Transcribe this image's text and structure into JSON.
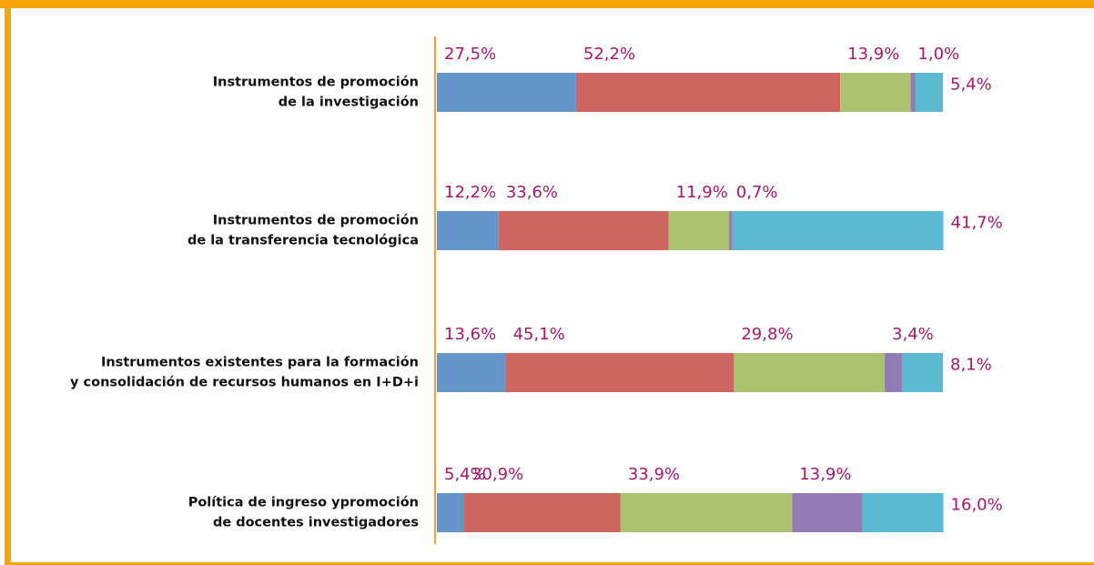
{
  "chart_data": {
    "type": "stacked-barh",
    "categories": [
      [
        "Instrumentos de promoción",
        "de la investigación"
      ],
      [
        "Instrumentos de promoción",
        "de la transferencia tecnológica"
      ],
      [
        "Instrumentos existentes para la formación",
        "y consolidación de recursos humanos en I+D+i"
      ],
      [
        "Política de ingreso ypromoción",
        "de docentes investigadores"
      ]
    ],
    "series": [
      {
        "color": "#6596c9",
        "values": [
          27.5,
          12.2,
          13.6,
          5.4
        ],
        "value_labels": [
          "27,5%",
          "12,2%",
          "13,6%",
          "5,4%"
        ]
      },
      {
        "color": "#cd6660",
        "values": [
          52.2,
          33.6,
          45.1,
          30.9
        ],
        "value_labels": [
          "52,2%",
          "33,6%",
          "45,1%",
          "30,9%"
        ]
      },
      {
        "color": "#abc26f",
        "values": [
          13.9,
          11.9,
          29.8,
          33.9
        ],
        "value_labels": [
          "13,9%",
          "11,9%",
          "29,8%",
          "33,9%"
        ]
      },
      {
        "color": "#937cb4",
        "values": [
          1.0,
          0.7,
          3.4,
          13.9
        ],
        "value_labels": [
          "1,0%",
          "0,7%",
          "3,4%",
          "13,9%"
        ]
      },
      {
        "color": "#5bb9d1",
        "values": [
          5.4,
          41.7,
          8.1,
          16.0
        ],
        "value_labels": [
          "5,4%",
          "41,7%",
          "8,1%",
          "16,0%"
        ]
      }
    ],
    "xlim": [
      0,
      100
    ]
  }
}
